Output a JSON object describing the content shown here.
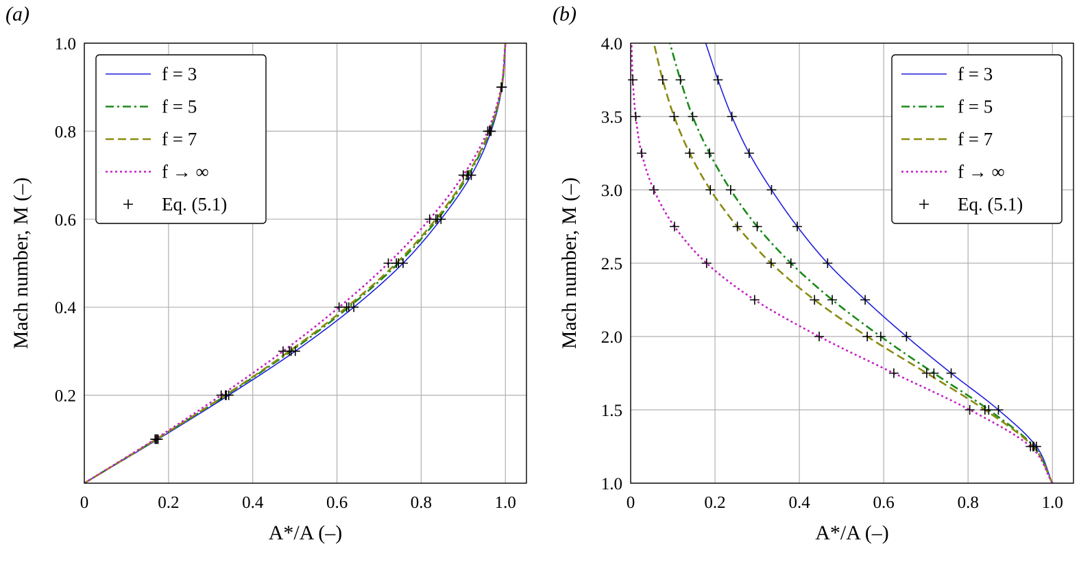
{
  "chart_data": [
    {
      "type": "line",
      "panel_label": "(a)",
      "xlabel": "A*/A (–)",
      "ylabel": "Mach number, M (–)",
      "xlim": [
        0,
        1.05
      ],
      "ylim": [
        0,
        1.0
      ],
      "xticks": [
        0,
        0.2,
        0.4,
        0.6,
        0.8,
        1.0
      ],
      "xtick_labels": [
        "0",
        "0.2",
        "0.4",
        "0.6",
        "0.8",
        "1.0"
      ],
      "yticks": [
        0.2,
        0.4,
        0.6,
        0.8,
        1.0
      ],
      "ytick_labels": [
        "0.2",
        "0.4",
        "0.6",
        "0.8",
        "1.0"
      ],
      "grid": true,
      "legend_position": "top-left",
      "series": [
        {
          "name": "f = 3",
          "style": "solid",
          "color": "#1f1fdc",
          "exponent": 3,
          "x": [
            0,
            0.175,
            0.343,
            0.501,
            0.64,
            0.757,
            0.847,
            0.919,
            0.966,
            0.992,
            1.0
          ],
          "y": [
            0,
            0.1,
            0.2,
            0.3,
            0.4,
            0.5,
            0.6,
            0.7,
            0.8,
            0.9,
            1.0
          ]
        },
        {
          "name": "f = 5",
          "style": "dashdot",
          "color": "#1a8a1a",
          "exponent": 5,
          "x": [
            0,
            0.172,
            0.337,
            0.491,
            0.628,
            0.746,
            0.839,
            0.912,
            0.963,
            0.991,
            1.0
          ],
          "y": [
            0,
            0.1,
            0.2,
            0.3,
            0.4,
            0.5,
            0.6,
            0.7,
            0.8,
            0.9,
            1.0
          ]
        },
        {
          "name": "f = 7",
          "style": "dashed",
          "color": "#8a8a10",
          "exponent": 7,
          "x": [
            0,
            0.171,
            0.335,
            0.487,
            0.623,
            0.741,
            0.835,
            0.909,
            0.962,
            0.991,
            1.0
          ],
          "y": [
            0,
            0.1,
            0.2,
            0.3,
            0.4,
            0.5,
            0.6,
            0.7,
            0.8,
            0.9,
            1.0
          ]
        },
        {
          "name": "f → ∞",
          "style": "dotted",
          "color": "#c41ec4",
          "exponent": 99,
          "x": [
            0,
            0.168,
            0.325,
            0.472,
            0.605,
            0.722,
            0.82,
            0.9,
            0.958,
            0.99,
            1.0
          ],
          "y": [
            0,
            0.1,
            0.2,
            0.3,
            0.4,
            0.5,
            0.6,
            0.7,
            0.8,
            0.9,
            1.0
          ]
        }
      ],
      "markers": {
        "name": "Eq. (5.1)",
        "symbol": "+",
        "points": [
          [
            0.168,
            0.1
          ],
          [
            0.171,
            0.1
          ],
          [
            0.172,
            0.1
          ],
          [
            0.175,
            0.1
          ],
          [
            0.325,
            0.2
          ],
          [
            0.335,
            0.2
          ],
          [
            0.337,
            0.2
          ],
          [
            0.343,
            0.2
          ],
          [
            0.472,
            0.3
          ],
          [
            0.487,
            0.3
          ],
          [
            0.491,
            0.3
          ],
          [
            0.501,
            0.3
          ],
          [
            0.605,
            0.4
          ],
          [
            0.623,
            0.4
          ],
          [
            0.628,
            0.4
          ],
          [
            0.64,
            0.4
          ],
          [
            0.722,
            0.5
          ],
          [
            0.741,
            0.5
          ],
          [
            0.746,
            0.5
          ],
          [
            0.757,
            0.5
          ],
          [
            0.82,
            0.6
          ],
          [
            0.835,
            0.6
          ],
          [
            0.839,
            0.6
          ],
          [
            0.847,
            0.6
          ],
          [
            0.9,
            0.7
          ],
          [
            0.909,
            0.7
          ],
          [
            0.912,
            0.7
          ],
          [
            0.919,
            0.7
          ],
          [
            0.958,
            0.8
          ],
          [
            0.962,
            0.8
          ],
          [
            0.963,
            0.8
          ],
          [
            0.966,
            0.8
          ],
          [
            0.99,
            0.9
          ],
          [
            0.991,
            0.9
          ],
          [
            0.992,
            0.9
          ]
        ]
      }
    },
    {
      "type": "line",
      "panel_label": "(b)",
      "xlabel": "A*/A (–)",
      "ylabel": "Mach number, M (–)",
      "xlim": [
        0,
        1.05
      ],
      "ylim": [
        1.0,
        4.0
      ],
      "xticks": [
        0,
        0.2,
        0.4,
        0.6,
        0.8,
        1.0
      ],
      "xtick_labels": [
        "0",
        "0.2",
        "0.4",
        "0.6",
        "0.8",
        "1.0"
      ],
      "yticks": [
        1.0,
        1.5,
        2.0,
        2.5,
        3.0,
        3.5,
        4.0
      ],
      "ytick_labels": [
        "1.0",
        "1.5",
        "2.0",
        "2.5",
        "3.0",
        "3.5",
        "4.0"
      ],
      "grid": true,
      "legend_position": "top-right",
      "series": [
        {
          "name": "f = 3",
          "style": "solid",
          "color": "#1f1fdc",
          "exponent": 3,
          "x": [
            1.0,
            0.962,
            0.872,
            0.76,
            0.654,
            0.556,
            0.467,
            0.395,
            0.334,
            0.281,
            0.24,
            0.207,
            0.178
          ],
          "y": [
            1.0,
            1.25,
            1.5,
            1.75,
            2.0,
            2.25,
            2.5,
            2.75,
            3.0,
            3.25,
            3.5,
            3.75,
            4.0
          ]
        },
        {
          "name": "f = 5",
          "style": "dashdot",
          "color": "#1a8a1a",
          "exponent": 5,
          "x": [
            1.0,
            0.956,
            0.849,
            0.719,
            0.593,
            0.478,
            0.38,
            0.3,
            0.237,
            0.187,
            0.147,
            0.118,
            0.093
          ],
          "y": [
            1.0,
            1.25,
            1.5,
            1.75,
            2.0,
            2.25,
            2.5,
            2.75,
            3.0,
            3.25,
            3.5,
            3.75,
            4.0
          ]
        },
        {
          "name": "f = 7",
          "style": "dashed",
          "color": "#8a8a10",
          "exponent": 7,
          "x": [
            1.0,
            0.954,
            0.84,
            0.702,
            0.561,
            0.436,
            0.333,
            0.253,
            0.189,
            0.14,
            0.103,
            0.076,
            0.055
          ],
          "y": [
            1.0,
            1.25,
            1.5,
            1.75,
            2.0,
            2.25,
            2.5,
            2.75,
            3.0,
            3.25,
            3.5,
            3.75,
            4.0
          ]
        },
        {
          "name": "f → ∞",
          "style": "dotted",
          "color": "#c41ec4",
          "exponent": 99,
          "x": [
            1.0,
            0.948,
            0.804,
            0.624,
            0.447,
            0.294,
            0.18,
            0.104,
            0.055,
            0.026,
            0.012,
            0.005,
            0.002
          ],
          "y": [
            1.0,
            1.25,
            1.5,
            1.75,
            2.0,
            2.25,
            2.5,
            2.75,
            3.0,
            3.25,
            3.5,
            3.75,
            4.0
          ]
        }
      ],
      "markers": {
        "name": "Eq. (5.1)",
        "symbol": "+",
        "points": [
          [
            0.948,
            1.25
          ],
          [
            0.954,
            1.25
          ],
          [
            0.956,
            1.25
          ],
          [
            0.962,
            1.25
          ],
          [
            0.804,
            1.5
          ],
          [
            0.84,
            1.5
          ],
          [
            0.849,
            1.5
          ],
          [
            0.872,
            1.5
          ],
          [
            0.624,
            1.75
          ],
          [
            0.702,
            1.75
          ],
          [
            0.719,
            1.75
          ],
          [
            0.76,
            1.75
          ],
          [
            0.447,
            2.0
          ],
          [
            0.561,
            2.0
          ],
          [
            0.593,
            2.0
          ],
          [
            0.654,
            2.0
          ],
          [
            0.294,
            2.25
          ],
          [
            0.436,
            2.25
          ],
          [
            0.478,
            2.25
          ],
          [
            0.556,
            2.25
          ],
          [
            0.18,
            2.5
          ],
          [
            0.333,
            2.5
          ],
          [
            0.38,
            2.5
          ],
          [
            0.467,
            2.5
          ],
          [
            0.104,
            2.75
          ],
          [
            0.253,
            2.75
          ],
          [
            0.3,
            2.75
          ],
          [
            0.395,
            2.75
          ],
          [
            0.055,
            3.0
          ],
          [
            0.189,
            3.0
          ],
          [
            0.237,
            3.0
          ],
          [
            0.334,
            3.0
          ],
          [
            0.026,
            3.25
          ],
          [
            0.14,
            3.25
          ],
          [
            0.187,
            3.25
          ],
          [
            0.281,
            3.25
          ],
          [
            0.012,
            3.5
          ],
          [
            0.103,
            3.5
          ],
          [
            0.147,
            3.5
          ],
          [
            0.24,
            3.5
          ],
          [
            0.005,
            3.75
          ],
          [
            0.076,
            3.75
          ],
          [
            0.118,
            3.75
          ],
          [
            0.207,
            3.75
          ]
        ]
      }
    }
  ]
}
